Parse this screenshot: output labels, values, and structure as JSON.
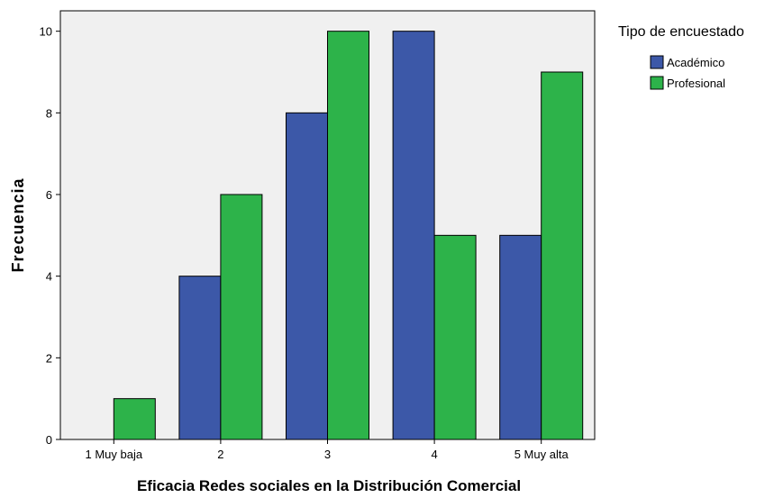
{
  "chart_data": {
    "type": "bar",
    "categories": [
      "1 Muy baja",
      "2",
      "3",
      "4",
      "5 Muy alta"
    ],
    "series": [
      {
        "name": "Académico",
        "values": [
          0,
          4,
          8,
          10,
          5
        ],
        "color": "#3c58a8"
      },
      {
        "name": "Profesional",
        "values": [
          1,
          6,
          10,
          5,
          9
        ],
        "color": "#2db34a"
      }
    ],
    "xlabel": "Eficacia Redes sociales en la Distribución Comercial",
    "ylabel": "Frecuencia",
    "ylim": [
      0,
      10.5
    ],
    "yticks": [
      0,
      2,
      4,
      6,
      8,
      10
    ],
    "legend_title": "Tipo de encuestado",
    "legend_position": "top-right",
    "grid": false,
    "plot_background": "#f0f0f0"
  }
}
